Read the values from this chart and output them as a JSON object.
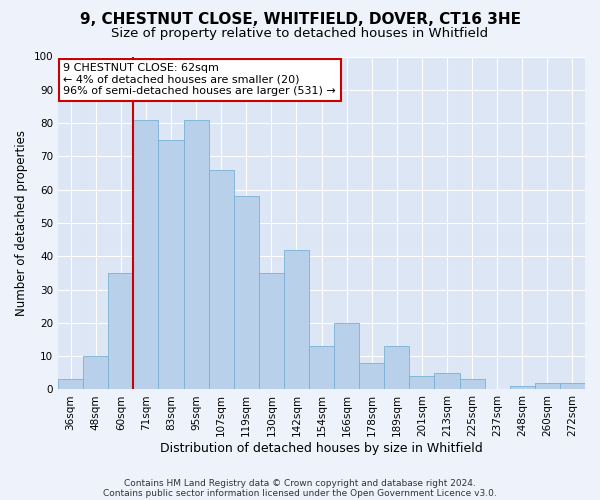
{
  "title1": "9, CHESTNUT CLOSE, WHITFIELD, DOVER, CT16 3HE",
  "title2": "Size of property relative to detached houses in Whitfield",
  "xlabel": "Distribution of detached houses by size in Whitfield",
  "ylabel": "Number of detached properties",
  "footnote1": "Contains HM Land Registry data © Crown copyright and database right 2024.",
  "footnote2": "Contains public sector information licensed under the Open Government Licence v3.0.",
  "annotation_line1": "9 CHESTNUT CLOSE: 62sqm",
  "annotation_line2": "← 4% of detached houses are smaller (20)",
  "annotation_line3": "96% of semi-detached houses are larger (531) →",
  "bar_labels": [
    "36sqm",
    "48sqm",
    "60sqm",
    "71sqm",
    "83sqm",
    "95sqm",
    "107sqm",
    "119sqm",
    "130sqm",
    "142sqm",
    "154sqm",
    "166sqm",
    "178sqm",
    "189sqm",
    "201sqm",
    "213sqm",
    "225sqm",
    "237sqm",
    "248sqm",
    "260sqm",
    "272sqm"
  ],
  "bar_values": [
    3,
    10,
    35,
    81,
    75,
    81,
    66,
    58,
    35,
    42,
    13,
    20,
    8,
    13,
    4,
    5,
    3,
    0,
    1,
    2,
    2
  ],
  "bar_color": "#b8d0ea",
  "bar_edgecolor": "#7aafd4",
  "bar_width": 1.0,
  "vline_x": 2.5,
  "vline_color": "#cc0000",
  "ylim": [
    0,
    100
  ],
  "yticks": [
    0,
    10,
    20,
    30,
    40,
    50,
    60,
    70,
    80,
    90,
    100
  ],
  "bg_color": "#eef2fa",
  "plot_bg_color": "#dce6f5",
  "grid_color": "#ffffff",
  "annotation_box_facecolor": "#ffffff",
  "annotation_box_edgecolor": "#cc0000",
  "title1_fontsize": 11,
  "title2_fontsize": 9.5,
  "xlabel_fontsize": 9,
  "ylabel_fontsize": 8.5,
  "tick_fontsize": 7.5,
  "annotation_fontsize": 8,
  "footnote_fontsize": 6.5
}
